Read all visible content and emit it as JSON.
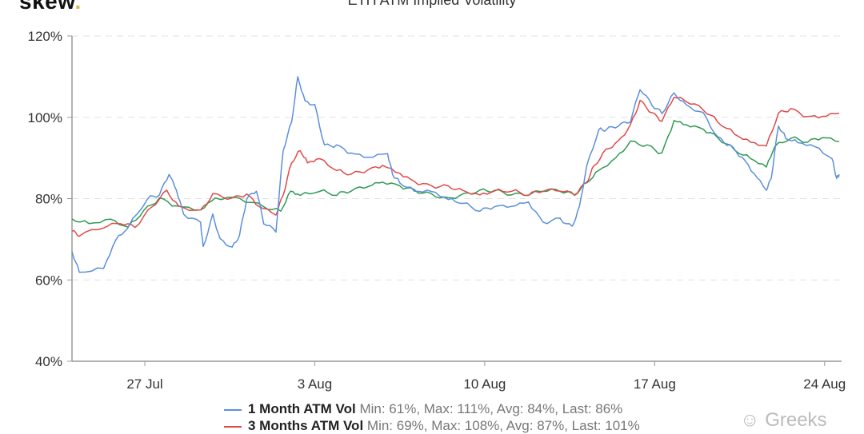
{
  "header": {
    "logo": "skew",
    "title": "ETH ATM Implied Volatility"
  },
  "watermark": {
    "icon": "wechat-icon",
    "text": "Greeks"
  },
  "chart_data": {
    "type": "line",
    "title": "ETH ATM Implied Volatility",
    "xlabel": "",
    "ylabel": "",
    "x_unit": "days since 24 Jul",
    "xlim": [
      0,
      31.7
    ],
    "ylim": [
      40,
      120
    ],
    "yticks": [
      {
        "v": 40,
        "label": "40%"
      },
      {
        "v": 60,
        "label": "60%"
      },
      {
        "v": 80,
        "label": "80%"
      },
      {
        "v": 100,
        "label": "100%"
      },
      {
        "v": 120,
        "label": "120%"
      }
    ],
    "xticks": [
      {
        "v": 3,
        "label": "27 Jul"
      },
      {
        "v": 10,
        "label": "3 Aug"
      },
      {
        "v": 17,
        "label": "10 Aug"
      },
      {
        "v": 24,
        "label": "17 Aug"
      },
      {
        "v": 31,
        "label": "24 Aug"
      }
    ],
    "grid": true,
    "legend_position": "bottom",
    "series": [
      {
        "name": "1 Month ATM Vol",
        "stats": "Min: 61%, Max: 111%, Avg: 84%, Last: 86%",
        "color": "#5b8fdc",
        "points": [
          [
            0,
            67
          ],
          [
            0.3,
            62
          ],
          [
            1.3,
            63
          ],
          [
            1.8,
            70
          ],
          [
            2.3,
            73
          ],
          [
            3.1,
            80
          ],
          [
            3.6,
            81
          ],
          [
            4.0,
            86
          ],
          [
            4.3,
            82
          ],
          [
            4.6,
            76
          ],
          [
            5.3,
            74
          ],
          [
            5.4,
            68
          ],
          [
            5.8,
            76
          ],
          [
            6.1,
            70
          ],
          [
            6.6,
            68
          ],
          [
            6.9,
            71
          ],
          [
            7.2,
            80
          ],
          [
            7.6,
            82
          ],
          [
            7.9,
            74
          ],
          [
            8.4,
            72
          ],
          [
            8.7,
            92
          ],
          [
            9.05,
            99
          ],
          [
            9.3,
            110
          ],
          [
            9.6,
            104
          ],
          [
            10.0,
            103
          ],
          [
            10.4,
            93
          ],
          [
            10.9,
            93
          ],
          [
            11.5,
            91
          ],
          [
            12.2,
            90
          ],
          [
            13.0,
            91
          ],
          [
            13.2,
            86
          ],
          [
            13.5,
            84
          ],
          [
            14.1,
            82
          ],
          [
            14.8,
            82
          ],
          [
            15.5,
            80
          ],
          [
            16.1,
            79
          ],
          [
            16.8,
            77
          ],
          [
            17.4,
            78
          ],
          [
            18.1,
            78
          ],
          [
            18.8,
            79
          ],
          [
            19.4,
            74
          ],
          [
            20.1,
            75
          ],
          [
            20.6,
            73
          ],
          [
            20.9,
            78
          ],
          [
            21.2,
            88
          ],
          [
            21.7,
            97
          ],
          [
            22.0,
            97
          ],
          [
            22.5,
            98
          ],
          [
            23.0,
            99
          ],
          [
            23.4,
            107
          ],
          [
            23.9,
            103
          ],
          [
            24.3,
            101
          ],
          [
            24.8,
            106
          ],
          [
            25.3,
            103
          ],
          [
            26.0,
            101
          ],
          [
            26.6,
            95
          ],
          [
            27.1,
            93
          ],
          [
            27.6,
            90
          ],
          [
            28.1,
            86
          ],
          [
            28.6,
            82
          ],
          [
            28.8,
            85
          ],
          [
            29.1,
            98
          ],
          [
            29.4,
            95
          ],
          [
            29.9,
            94
          ],
          [
            30.6,
            93
          ],
          [
            31.3,
            90
          ],
          [
            31.5,
            85
          ],
          [
            31.6,
            86
          ]
        ]
      },
      {
        "name": "3 Months ATM Vol",
        "stats": "Min: 69%, Max: 108%, Avg: 87%, Last: 101%",
        "color": "#e04a4a",
        "points": [
          [
            0,
            72
          ],
          [
            0.3,
            71
          ],
          [
            1.3,
            73
          ],
          [
            2.0,
            74
          ],
          [
            2.6,
            73
          ],
          [
            3.3,
            78
          ],
          [
            3.9,
            82
          ],
          [
            4.4,
            78
          ],
          [
            5.3,
            77
          ],
          [
            5.8,
            81
          ],
          [
            6.6,
            80
          ],
          [
            7.2,
            81
          ],
          [
            7.7,
            78
          ],
          [
            8.4,
            76
          ],
          [
            8.7,
            81
          ],
          [
            9.05,
            89
          ],
          [
            9.4,
            92
          ],
          [
            9.7,
            89
          ],
          [
            10.2,
            90
          ],
          [
            10.9,
            87
          ],
          [
            11.5,
            86
          ],
          [
            12.2,
            87
          ],
          [
            12.8,
            88
          ],
          [
            13.5,
            86
          ],
          [
            14.1,
            84
          ],
          [
            14.8,
            83
          ],
          [
            15.5,
            83
          ],
          [
            16.1,
            82
          ],
          [
            16.8,
            81
          ],
          [
            17.4,
            82
          ],
          [
            18.1,
            82
          ],
          [
            18.8,
            81
          ],
          [
            19.4,
            82
          ],
          [
            20.1,
            82
          ],
          [
            20.7,
            81
          ],
          [
            21.2,
            84
          ],
          [
            21.5,
            88
          ],
          [
            22.0,
            92
          ],
          [
            22.5,
            94
          ],
          [
            23.0,
            98
          ],
          [
            23.4,
            104
          ],
          [
            23.9,
            101
          ],
          [
            24.3,
            99
          ],
          [
            24.8,
            105
          ],
          [
            25.3,
            104
          ],
          [
            26.0,
            102
          ],
          [
            26.6,
            99
          ],
          [
            27.3,
            96
          ],
          [
            27.96,
            94
          ],
          [
            28.6,
            93
          ],
          [
            29.1,
            101
          ],
          [
            29.6,
            102
          ],
          [
            30.3,
            100
          ],
          [
            30.9,
            100
          ],
          [
            31.6,
            101
          ]
        ]
      },
      {
        "name": "",
        "stats": "",
        "color": "#2e9a52",
        "points": [
          [
            0,
            75
          ],
          [
            0.7,
            74
          ],
          [
            1.6,
            75
          ],
          [
            2.3,
            73
          ],
          [
            2.96,
            77
          ],
          [
            3.6,
            80
          ],
          [
            4.3,
            78
          ],
          [
            5.3,
            77
          ],
          [
            5.9,
            80
          ],
          [
            6.9,
            80
          ],
          [
            7.9,
            78
          ],
          [
            8.6,
            77
          ],
          [
            9.0,
            82
          ],
          [
            9.4,
            81
          ],
          [
            10.2,
            82
          ],
          [
            10.9,
            81
          ],
          [
            11.5,
            82
          ],
          [
            12.2,
            83
          ],
          [
            12.8,
            84
          ],
          [
            13.5,
            83
          ],
          [
            14.1,
            82
          ],
          [
            14.8,
            81
          ],
          [
            15.5,
            80
          ],
          [
            16.1,
            81
          ],
          [
            16.8,
            82
          ],
          [
            17.4,
            82
          ],
          [
            18.1,
            81
          ],
          [
            18.8,
            81
          ],
          [
            19.4,
            82
          ],
          [
            20.1,
            82
          ],
          [
            20.7,
            81
          ],
          [
            21.2,
            84
          ],
          [
            21.7,
            87
          ],
          [
            22.4,
            90
          ],
          [
            23.0,
            94
          ],
          [
            23.7,
            93
          ],
          [
            24.3,
            91
          ],
          [
            24.8,
            99
          ],
          [
            25.3,
            98
          ],
          [
            26.0,
            97
          ],
          [
            26.6,
            95
          ],
          [
            27.3,
            92
          ],
          [
            27.96,
            90
          ],
          [
            28.6,
            88
          ],
          [
            28.95,
            93
          ],
          [
            29.6,
            95
          ],
          [
            30.3,
            94
          ],
          [
            30.9,
            95
          ],
          [
            31.6,
            94
          ]
        ]
      }
    ]
  }
}
